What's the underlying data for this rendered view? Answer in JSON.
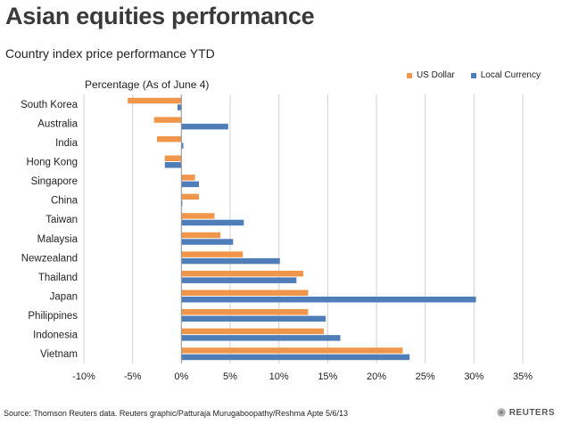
{
  "title": "Asian equities performance",
  "subtitle": "Country index price performance YTD",
  "footer": {
    "source": "Source: Thomson Reuters data.   Reuters graphic/Patturaja Murugaboopathy/Reshma Apte 5/6/13",
    "brand": "REUTERS"
  },
  "colors": {
    "us_dollar": "#F0964C",
    "local_currency": "#4F7DB8"
  },
  "chart_data": {
    "type": "bar",
    "orientation": "horizontal",
    "unit_label": "Percentage (As of June 4)",
    "categories": [
      "South Korea",
      "Australia",
      "India",
      "Hong Kong",
      "Singapore",
      "China",
      "Taiwan",
      "Malaysia",
      "Newzealand",
      "Thailand",
      "Japan",
      "Philippines",
      "Indonesia",
      "Vietnam"
    ],
    "series": [
      {
        "name": "US Dollar",
        "color": "#F0964C",
        "values": [
          -5.5,
          -2.8,
          -2.5,
          -1.7,
          1.4,
          1.8,
          3.4,
          4.0,
          6.3,
          12.5,
          13.0,
          13.0,
          14.6,
          22.7
        ]
      },
      {
        "name": "Local Currency",
        "color": "#4F7DB8",
        "values": [
          -0.4,
          4.8,
          0.2,
          -1.7,
          1.8,
          0.1,
          6.4,
          5.3,
          10.1,
          11.8,
          30.2,
          14.8,
          16.3,
          23.4
        ]
      }
    ],
    "xlim": [
      -10,
      35
    ],
    "xticks": [
      -10,
      -5,
      0,
      5,
      10,
      15,
      20,
      25,
      30,
      35
    ],
    "xtick_labels": [
      "-10%",
      "-5%",
      "0%",
      "5%",
      "10%",
      "15%",
      "20%",
      "25%",
      "30%",
      "35%"
    ],
    "grid": true,
    "legend_position": "top-right"
  }
}
